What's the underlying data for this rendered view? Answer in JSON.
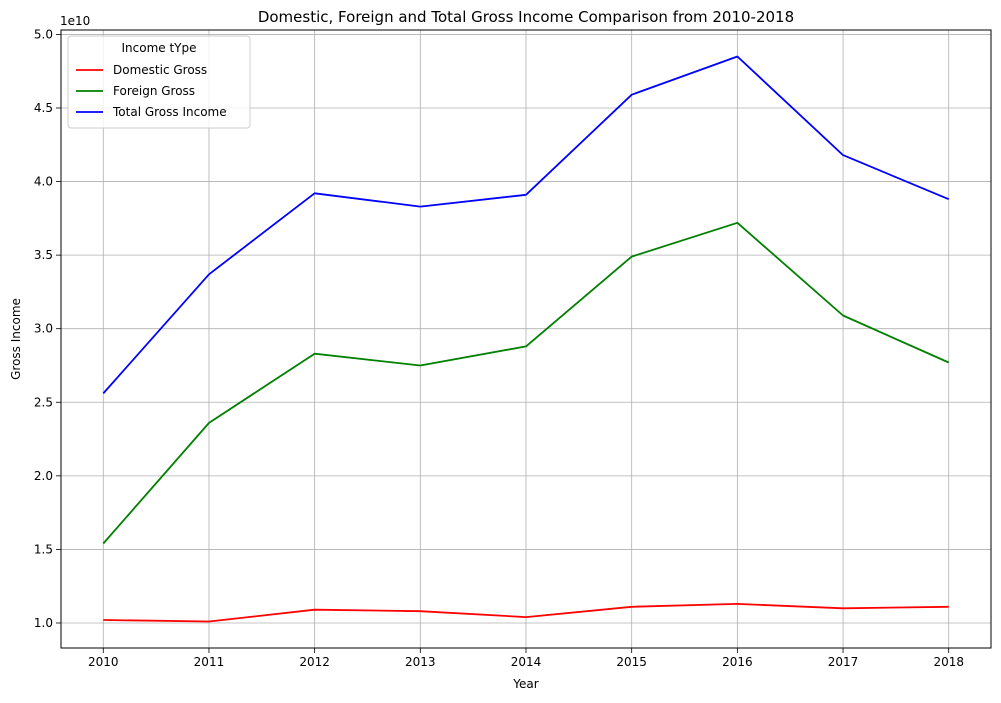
{
  "chart_data": {
    "type": "line",
    "title": "Domestic, Foreign and Total Gross Income Comparison from 2010-2018",
    "xlabel": "Year",
    "ylabel": "Gross Income",
    "y_offset_label": "1e10",
    "y_scale_factor": 10000000000,
    "x": [
      2010,
      2011,
      2012,
      2013,
      2014,
      2015,
      2016,
      2017,
      2018
    ],
    "x_tick_labels": [
      "2010",
      "2011",
      "2012",
      "2013",
      "2014",
      "2015",
      "2016",
      "2017",
      "2018"
    ],
    "y_ticks": [
      1.0,
      1.5,
      2.0,
      2.5,
      3.0,
      3.5,
      4.0,
      4.5,
      5.0
    ],
    "y_tick_labels": [
      "1.0",
      "1.5",
      "2.0",
      "2.5",
      "3.0",
      "3.5",
      "4.0",
      "4.5",
      "5.0"
    ],
    "xlim": [
      2009.6,
      2018.4
    ],
    "ylim": [
      0.83,
      5.03
    ],
    "grid": true,
    "legend": {
      "title": "Income tYpe",
      "placement": "top-left"
    },
    "series": [
      {
        "name": "Domestic Gross",
        "color": "#ff0000",
        "values": [
          1.02,
          1.01,
          1.09,
          1.08,
          1.04,
          1.11,
          1.13,
          1.1,
          1.11
        ]
      },
      {
        "name": "Foreign Gross",
        "color": "#008000",
        "values": [
          1.54,
          2.36,
          2.83,
          2.75,
          2.88,
          3.49,
          3.72,
          3.09,
          2.77
        ]
      },
      {
        "name": "Total Gross Income",
        "color": "#0000ff",
        "values": [
          2.56,
          3.37,
          3.92,
          3.83,
          3.91,
          4.59,
          4.85,
          4.18,
          3.88
        ]
      }
    ]
  }
}
